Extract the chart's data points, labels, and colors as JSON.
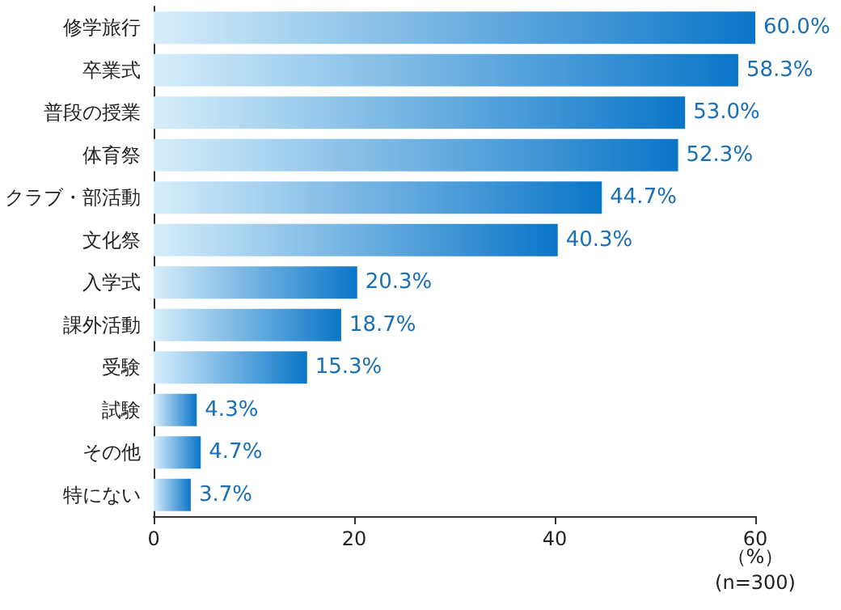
{
  "chart_data": {
    "type": "bar",
    "orientation": "horizontal",
    "categories": [
      "修学旅行",
      "卒業式",
      "普段の授業",
      "体育祭",
      "クラブ・部活動",
      "文化祭",
      "入学式",
      "課外活動",
      "受験",
      "試験",
      "その他",
      "特にない"
    ],
    "values": [
      60.0,
      58.3,
      53.0,
      52.3,
      44.7,
      40.3,
      20.3,
      18.7,
      15.3,
      4.3,
      4.7,
      3.7
    ],
    "value_labels": [
      "60.0%",
      "58.3%",
      "53.0%",
      "52.3%",
      "44.7%",
      "40.3%",
      "20.3%",
      "18.7%",
      "15.3%",
      "4.3%",
      "4.7%",
      "3.7%"
    ],
    "color": "#0a75c8",
    "xlim": [
      0,
      60
    ],
    "xticks": [
      0,
      20,
      40,
      60
    ],
    "xlabel": "（%）",
    "annotations": [
      "(n=300)"
    ],
    "grid": false
  }
}
